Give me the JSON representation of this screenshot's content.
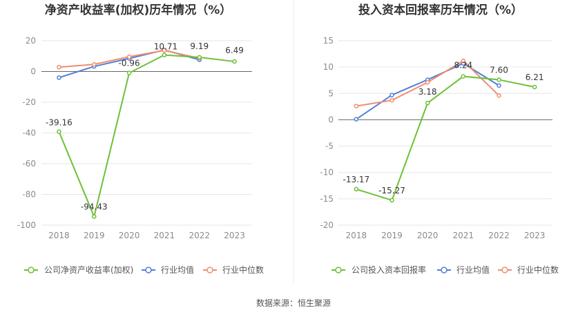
{
  "source": "数据来源：恒生聚源",
  "series_colors": {
    "company": "#6cc036",
    "avg": "#4f7fd9",
    "median": "#f08d6e"
  },
  "chart_data": [
    {
      "type": "line",
      "title": "净资产收益率(加权)历年情况（%）",
      "categories": [
        "2018",
        "2019",
        "2020",
        "2021",
        "2022",
        "2023"
      ],
      "ylim": [
        -100,
        20
      ],
      "yticks": [
        20,
        0,
        -20,
        -40,
        -60,
        -80,
        -100
      ],
      "grid": true,
      "legend_position": "bottom",
      "series": [
        {
          "name": "公司净资产收益率(加权)",
          "values": [
            -39.16,
            -94.43,
            -0.96,
            10.71,
            9.19,
            6.49
          ],
          "labels": [
            "-39.16",
            "-94.43",
            "-0.96",
            "10.71",
            "9.19",
            "6.49"
          ]
        },
        {
          "name": "行业均值",
          "values": [
            -4.0,
            3.3,
            8.5,
            14.0,
            7.6,
            null
          ]
        },
        {
          "name": "行业中位数",
          "values": [
            2.8,
            4.6,
            9.6,
            13.7,
            8.6,
            null
          ]
        }
      ]
    },
    {
      "type": "line",
      "title": "投入资本回报率历年情况（%）",
      "categories": [
        "2018",
        "2019",
        "2020",
        "2021",
        "2022",
        "2023"
      ],
      "ylim": [
        -20,
        15
      ],
      "yticks": [
        15,
        10,
        5,
        0,
        -5,
        -10,
        -15,
        -20
      ],
      "grid": true,
      "legend_position": "bottom",
      "series": [
        {
          "name": "公司投入资本回报率",
          "values": [
            -13.17,
            -15.27,
            3.18,
            8.24,
            7.6,
            6.21
          ],
          "labels": [
            "-13.17",
            "-15.27",
            "3.18",
            "8.24",
            "7.60",
            "6.21"
          ]
        },
        {
          "name": "行业均值",
          "values": [
            0.1,
            4.7,
            7.6,
            10.7,
            6.5,
            null
          ]
        },
        {
          "name": "行业中位数",
          "values": [
            2.6,
            3.7,
            7.1,
            11.2,
            4.6,
            null
          ]
        }
      ]
    }
  ]
}
